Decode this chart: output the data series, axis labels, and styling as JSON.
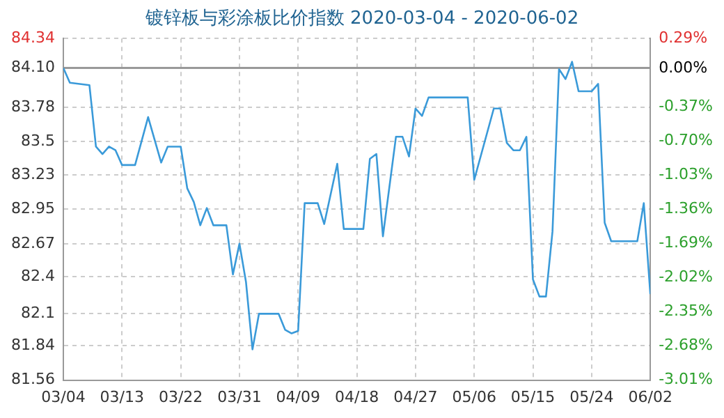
{
  "chart_data": {
    "type": "line",
    "title": "镀锌板与彩涂板比价指数 2020-03-04 - 2020-06-02",
    "x": [
      "2020-03-04",
      "2020-03-05",
      "2020-03-08",
      "2020-03-09",
      "2020-03-10",
      "2020-03-11",
      "2020-03-12",
      "2020-03-13",
      "2020-03-15",
      "2020-03-17",
      "2020-03-19",
      "2020-03-20",
      "2020-03-22",
      "2020-03-23",
      "2020-03-24",
      "2020-03-25",
      "2020-03-26",
      "2020-03-27",
      "2020-03-29",
      "2020-03-30",
      "2020-03-31",
      "2020-04-01",
      "2020-04-02",
      "2020-04-03",
      "2020-04-06",
      "2020-04-07",
      "2020-04-08",
      "2020-04-09",
      "2020-04-10",
      "2020-04-12",
      "2020-04-13",
      "2020-04-15",
      "2020-04-16",
      "2020-04-19",
      "2020-04-20",
      "2020-04-21",
      "2020-04-22",
      "2020-04-24",
      "2020-04-25",
      "2020-04-26",
      "2020-04-27",
      "2020-04-28",
      "2020-04-29",
      "2020-05-05",
      "2020-05-06",
      "2020-05-09",
      "2020-05-10",
      "2020-05-11",
      "2020-05-12",
      "2020-05-13",
      "2020-05-14",
      "2020-05-15",
      "2020-05-16",
      "2020-05-17",
      "2020-05-18",
      "2020-05-19",
      "2020-05-20",
      "2020-05-21",
      "2020-05-22",
      "2020-05-24",
      "2020-05-25",
      "2020-05-26",
      "2020-05-27",
      "2020-05-31",
      "2020-06-01",
      "2020-06-02"
    ],
    "series": [
      {
        "color": "#3a9ad9",
        "values": [
          84.1,
          83.98,
          83.96,
          83.46,
          83.4,
          83.46,
          83.43,
          83.31,
          83.31,
          83.7,
          83.33,
          83.46,
          83.46,
          83.12,
          83.01,
          82.82,
          82.96,
          82.82,
          82.82,
          82.42,
          82.67,
          82.36,
          81.81,
          82.1,
          82.1,
          81.97,
          81.94,
          81.96,
          83.0,
          83.0,
          82.83,
          83.32,
          82.79,
          82.79,
          83.36,
          83.4,
          82.73,
          83.54,
          83.54,
          83.38,
          83.77,
          83.71,
          83.86,
          83.86,
          83.19,
          83.77,
          83.77,
          83.49,
          83.43,
          83.43,
          83.54,
          82.38,
          82.24,
          82.24,
          82.77,
          84.09,
          84.01,
          84.15,
          83.91,
          83.91,
          83.97,
          82.84,
          82.69,
          82.69,
          83.0,
          82.26
        ]
      }
    ],
    "xlim": [
      "2020-03-04",
      "2020-06-02"
    ],
    "xticks": [
      {
        "value": "2020-03-04",
        "label": "03/04"
      },
      {
        "value": "2020-03-13",
        "label": "03/13"
      },
      {
        "value": "2020-03-22",
        "label": "03/22"
      },
      {
        "value": "2020-03-31",
        "label": "03/31"
      },
      {
        "value": "2020-04-09",
        "label": "04/09"
      },
      {
        "value": "2020-04-18",
        "label": "04/18"
      },
      {
        "value": "2020-04-27",
        "label": "04/27"
      },
      {
        "value": "2020-05-06",
        "label": "05/06"
      },
      {
        "value": "2020-05-15",
        "label": "05/15"
      },
      {
        "value": "2020-05-24",
        "label": "05/24"
      },
      {
        "value": "2020-06-02",
        "label": "06/02"
      }
    ],
    "ylim": [
      81.56,
      84.34
    ],
    "yticks": [
      81.56,
      81.84,
      82.1,
      82.4,
      82.67,
      82.95,
      83.23,
      83.5,
      83.78,
      {
        "value": 84.1,
        "label": "84.10"
      },
      84.34
    ],
    "y2lim": [
      -3.01,
      0.29
    ],
    "y2ticks": [
      {
        "value": -3.01,
        "label": "-3.01%"
      },
      {
        "value": -2.68,
        "label": "-2.68%"
      },
      {
        "value": -2.35,
        "label": "-2.35%"
      },
      {
        "value": -2.02,
        "label": "-2.02%"
      },
      {
        "value": -1.69,
        "label": "-1.69%"
      },
      {
        "value": -1.36,
        "label": "-1.36%"
      },
      {
        "value": -1.03,
        "label": "-1.03%"
      },
      {
        "value": -0.7,
        "label": "-0.70%"
      },
      {
        "value": -0.37,
        "label": "-0.37%"
      },
      {
        "value": 0,
        "label": "0.00%"
      },
      {
        "value": 0.29,
        "label": "0.29%"
      }
    ],
    "ref_lines": [
      {
        "axis": "y",
        "value": 84.1,
        "color": "#999999"
      }
    ],
    "grid": true,
    "legend": false,
    "marker": "none",
    "line_style": "solid"
  }
}
